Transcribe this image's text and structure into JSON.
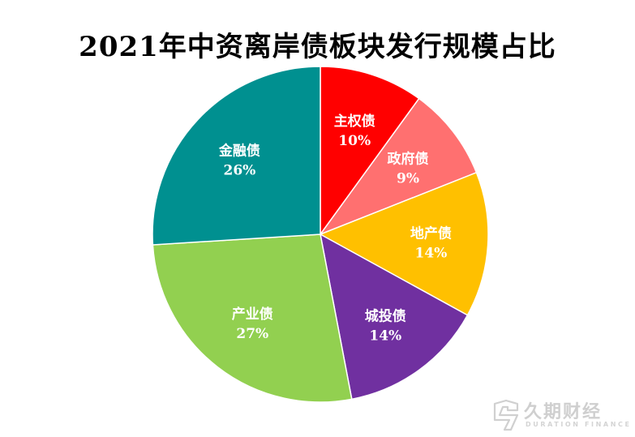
{
  "chart_data": {
    "type": "pie",
    "title": "2021年中资离岸债板块发行规模占比",
    "slices": [
      {
        "label": "主权债",
        "value": 10,
        "value_label": "10%",
        "color": "#ff0000"
      },
      {
        "label": "政府债",
        "value": 9,
        "value_label": "9%",
        "color": "#ff7070"
      },
      {
        "label": "地产债",
        "value": 14,
        "value_label": "14%",
        "color": "#ffc000"
      },
      {
        "label": "城投债",
        "value": 14,
        "value_label": "14%",
        "color": "#7030a0"
      },
      {
        "label": "产业债",
        "value": 27,
        "value_label": "27%",
        "color": "#92d050"
      },
      {
        "label": "金融债",
        "value": 26,
        "value_label": "26%",
        "color": "#009090"
      }
    ],
    "start_angle": "12 o'clock",
    "direction": "clockwise",
    "labels_inside": true,
    "legend": "none"
  },
  "watermark": {
    "text": "久期财经",
    "subtext": "DURATION FINANCE",
    "icon": "duration-logo-icon",
    "color": "#cfcfcf"
  }
}
